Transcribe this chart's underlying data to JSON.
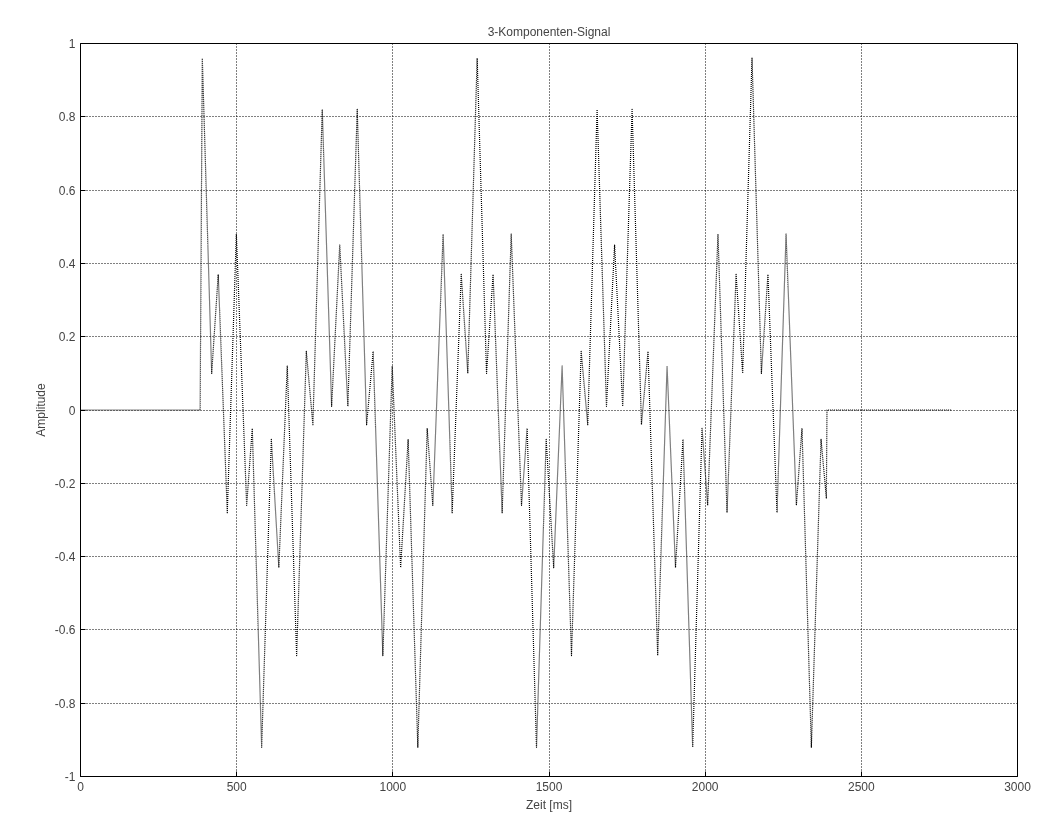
{
  "chart_data": {
    "type": "line",
    "title": "3-Komponenten-Signal",
    "xlabel": "Zeit [ms]",
    "ylabel": "Amplitude",
    "xlim": [
      0,
      3000
    ],
    "ylim": [
      -1,
      1
    ],
    "xticks": [
      0,
      500,
      1000,
      1500,
      2000,
      2500,
      3000
    ],
    "yticks": [
      -1,
      -0.8,
      -0.6,
      -0.4,
      -0.2,
      0,
      0.2,
      0.4,
      0.6,
      0.8,
      1
    ],
    "grid": true,
    "line_style": "dotted",
    "series": [
      {
        "color": "#000000",
        "x": [
          0,
          383,
          390,
          420,
          441,
          470,
          499,
          532,
          550,
          580,
          611,
          635,
          662,
          692,
          723,
          744,
          774,
          804,
          830,
          856,
          886,
          916,
          937,
          968,
          998,
          1025,
          1049,
          1080,
          1110,
          1128,
          1161,
          1190,
          1219,
          1240,
          1270,
          1300,
          1321,
          1350,
          1379,
          1412,
          1430,
          1460,
          1491,
          1515,
          1542,
          1572,
          1603,
          1624,
          1654,
          1684,
          1710,
          1736,
          1766,
          1796,
          1817,
          1848,
          1878,
          1905,
          1929,
          1960,
          1990,
          2008,
          2041,
          2070,
          2099,
          2120,
          2150,
          2180,
          2201,
          2230,
          2259,
          2292,
          2310,
          2340,
          2371,
          2388,
          2390,
          2790
        ],
        "values": [
          0,
          0,
          0.96,
          0.1,
          0.37,
          -0.28,
          0.48,
          -0.26,
          -0.05,
          -0.92,
          -0.08,
          -0.43,
          0.12,
          -0.67,
          0.16,
          -0.04,
          0.82,
          0.01,
          0.45,
          0.01,
          0.82,
          -0.04,
          0.16,
          -0.67,
          0.12,
          -0.43,
          -0.08,
          -0.92,
          -0.05,
          -0.26,
          0.48,
          -0.28,
          0.37,
          0.1,
          0.96,
          0.1,
          0.37,
          -0.28,
          0.48,
          -0.26,
          -0.05,
          -0.92,
          -0.08,
          -0.43,
          0.12,
          -0.67,
          0.16,
          -0.04,
          0.82,
          0.01,
          0.45,
          0.01,
          0.82,
          -0.04,
          0.16,
          -0.67,
          0.12,
          -0.43,
          -0.08,
          -0.92,
          -0.05,
          -0.26,
          0.48,
          -0.28,
          0.37,
          0.1,
          0.96,
          0.1,
          0.37,
          -0.28,
          0.48,
          -0.26,
          -0.05,
          -0.92,
          -0.08,
          -0.24,
          0,
          0
        ]
      }
    ]
  }
}
